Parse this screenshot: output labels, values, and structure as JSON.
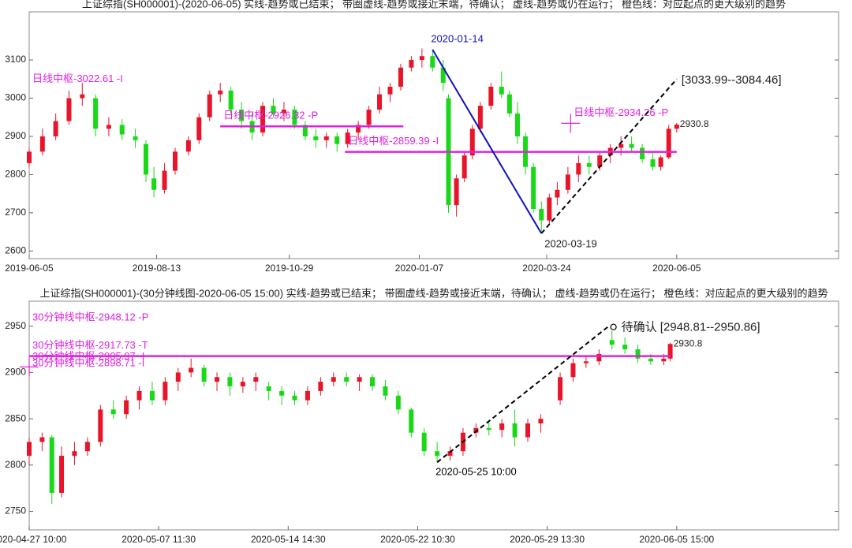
{
  "chart_data": [
    {
      "type": "candlestick",
      "title": "上证综指(SH000001)-(2020-06-05)  实线-趋势或已结束；  带圈虚线-趋势或接近末端，待确认；  虚线-趋势或仍在运行；  橙色线：对应起点的更大级别的趋势",
      "up_color": "#e8142a",
      "down_color": "#18d818",
      "xlim": [
        0,
        305
      ],
      "ylim": [
        2580,
        3226
      ],
      "xticks": [
        {
          "value": 0,
          "label": "2019-06-05"
        },
        {
          "value": 48,
          "label": "2019-08-13"
        },
        {
          "value": 98,
          "label": "2019-10-29"
        },
        {
          "value": 147,
          "label": "2020-01-07"
        },
        {
          "value": 195,
          "label": "2020-03-24"
        },
        {
          "value": 244,
          "label": "2020-06-05"
        }
      ],
      "yticks": [
        2600,
        2700,
        2800,
        2900,
        3000,
        3100
      ],
      "candles": {
        "x": [
          0,
          5,
          10,
          15,
          20,
          25,
          30,
          35,
          40,
          44,
          47,
          51,
          55,
          60,
          64,
          68,
          72,
          76,
          80,
          84,
          88,
          92,
          96,
          100,
          104,
          108,
          112,
          116,
          120,
          124,
          128,
          132,
          136,
          140,
          144,
          148,
          152,
          156,
          158,
          161,
          164,
          167,
          170,
          174,
          178,
          181,
          184,
          187,
          190,
          193,
          196,
          199,
          203,
          207,
          211,
          215,
          219,
          223,
          227,
          231,
          235,
          238,
          241,
          244
        ],
        "open": [
          2830,
          2860,
          2900,
          2940,
          3000,
          3000,
          2920,
          2930,
          2900,
          2880,
          2790,
          2760,
          2810,
          2860,
          2890,
          2950,
          3010,
          3020,
          2970,
          2940,
          2910,
          2980,
          2960,
          2970,
          2930,
          2900,
          2890,
          2900,
          2880,
          2910,
          2930,
          2970,
          3010,
          3030,
          3080,
          3100,
          3110,
          3080,
          3000,
          2720,
          2790,
          2850,
          2920,
          2980,
          3030,
          3010,
          2960,
          2900,
          2820,
          2710,
          2680,
          2740,
          2760,
          2800,
          2830,
          2820,
          2850,
          2870,
          2880,
          2870,
          2840,
          2820,
          2845,
          2920
        ],
        "high": [
          2870,
          2920,
          2960,
          3020,
          3040,
          3010,
          2950,
          2945,
          2920,
          2890,
          2820,
          2830,
          2870,
          2900,
          2960,
          3020,
          3040,
          3030,
          2990,
          2960,
          2990,
          3000,
          2990,
          2980,
          2940,
          2920,
          2910,
          2910,
          2920,
          2940,
          2980,
          3030,
          3040,
          3090,
          3110,
          3130,
          3127,
          3100,
          3010,
          2800,
          2860,
          2930,
          2990,
          3040,
          3070,
          3020,
          2990,
          2910,
          2830,
          2730,
          2750,
          2780,
          2820,
          2850,
          2850,
          2860,
          2880,
          2900,
          2900,
          2880,
          2860,
          2850,
          2930,
          2935
        ],
        "low": [
          2820,
          2850,
          2890,
          2930,
          2980,
          2900,
          2900,
          2890,
          2870,
          2780,
          2740,
          2750,
          2800,
          2850,
          2880,
          2940,
          2990,
          2960,
          2920,
          2890,
          2900,
          2950,
          2940,
          2920,
          2890,
          2870,
          2870,
          2860,
          2870,
          2890,
          2920,
          2960,
          2990,
          3020,
          3070,
          3080,
          3070,
          3020,
          2700,
          2690,
          2780,
          2840,
          2910,
          2970,
          3000,
          2950,
          2880,
          2800,
          2700,
          2646,
          2670,
          2720,
          2750,
          2780,
          2800,
          2810,
          2830,
          2850,
          2860,
          2830,
          2810,
          2810,
          2840,
          2910
        ],
        "close": [
          2860,
          2900,
          2940,
          3000,
          3010,
          2920,
          2930,
          2905,
          2890,
          2800,
          2760,
          2810,
          2860,
          2890,
          2950,
          3010,
          3020,
          2970,
          2940,
          2910,
          2980,
          2960,
          2970,
          2930,
          2900,
          2890,
          2900,
          2880,
          2910,
          2930,
          2970,
          3010,
          3030,
          3080,
          3100,
          3110,
          3080,
          3040,
          2720,
          2790,
          2850,
          2920,
          2980,
          3030,
          3010,
          2960,
          2900,
          2820,
          2710,
          2680,
          2740,
          2760,
          2800,
          2830,
          2820,
          2850,
          2870,
          2880,
          2870,
          2840,
          2820,
          2845,
          2920,
          2930.8
        ]
      },
      "trend_lines": [
        {
          "color": "#1010c0",
          "dashed": false,
          "x": [
            152,
            193
          ],
          "y": [
            3127,
            2646
          ],
          "start_label": "2020-01-14",
          "end_label": "2020-03-19"
        },
        {
          "color": "#000000",
          "dashed": true,
          "x": [
            193,
            244
          ],
          "y": [
            2646,
            3050
          ],
          "end_label": "[3033.99--3084.46]"
        }
      ],
      "pivot_color": "#e020e0",
      "pivots": [
        {
          "label": "日线中枢-3022.61 -I",
          "value": 3022.61
        },
        {
          "label": "日线中枢-2926.32 -P",
          "value": 2926.32,
          "x": [
            72,
            141
          ]
        },
        {
          "label": "日线中枢-2859.39 -I",
          "value": 2859.39,
          "x": [
            119,
            244
          ]
        },
        {
          "label": "日线中枢-2934.26 -P",
          "value": 2934.26,
          "x": [
            204
          ],
          "marker": "cross"
        }
      ],
      "last_price": 2930.8,
      "last_x": 244
    },
    {
      "type": "candlestick",
      "title": "上证综指(SH000001)-(30分钟线图-2020-06-05 15:00)  实线-趋势或已结束；  带圈虚线-趋势或接近末端，待确认；  虚线-趋势或仍在运行；  橙色线：对应起点的更大级别的趋势",
      "up_color": "#e8142a",
      "down_color": "#18d818",
      "xlim": [
        0,
        250
      ],
      "ylim": [
        2730,
        2977
      ],
      "xticks": [
        {
          "value": 0,
          "label": "2020-04-27 10:00"
        },
        {
          "value": 40,
          "label": "2020-05-07 11:30"
        },
        {
          "value": 80,
          "label": "2020-05-14 14:30"
        },
        {
          "value": 120,
          "label": "2020-05-22 10:30"
        },
        {
          "value": 160,
          "label": "2020-05-29 13:30"
        },
        {
          "value": 200,
          "label": "2020-06-05 15:00"
        }
      ],
      "yticks": [
        2750,
        2800,
        2850,
        2900,
        2950
      ],
      "candles": {
        "x": [
          0,
          4,
          7,
          10,
          14,
          18,
          22,
          26,
          30,
          34,
          38,
          42,
          46,
          50,
          54,
          58,
          62,
          66,
          70,
          74,
          78,
          82,
          86,
          90,
          94,
          98,
          102,
          106,
          110,
          114,
          118,
          122,
          126,
          130,
          134,
          138,
          142,
          146,
          150,
          154,
          158,
          164,
          168,
          172,
          176,
          180,
          184,
          188,
          192,
          196,
          198
        ],
        "open": [
          2810,
          2825,
          2830,
          2770,
          2810,
          2815,
          2825,
          2860,
          2855,
          2870,
          2880,
          2870,
          2890,
          2900,
          2905,
          2890,
          2895,
          2885,
          2890,
          2885,
          2880,
          2875,
          2870,
          2880,
          2890,
          2895,
          2890,
          2895,
          2885,
          2875,
          2860,
          2835,
          2815,
          2810,
          2815,
          2835,
          2840,
          2838,
          2845,
          2830,
          2845,
          2870,
          2895,
          2910,
          2912,
          2935,
          2930,
          2925,
          2915,
          2912,
          2915
        ],
        "high": [
          2830,
          2835,
          2832,
          2820,
          2825,
          2830,
          2865,
          2870,
          2875,
          2885,
          2890,
          2895,
          2905,
          2915,
          2908,
          2900,
          2900,
          2895,
          2900,
          2890,
          2885,
          2880,
          2885,
          2895,
          2900,
          2900,
          2898,
          2898,
          2892,
          2880,
          2862,
          2840,
          2825,
          2820,
          2840,
          2845,
          2848,
          2850,
          2860,
          2850,
          2855,
          2900,
          2915,
          2918,
          2925,
          2945,
          2938,
          2930,
          2920,
          2920,
          2932
        ],
        "low": [
          2800,
          2815,
          2758,
          2765,
          2800,
          2810,
          2820,
          2850,
          2850,
          2860,
          2865,
          2865,
          2880,
          2895,
          2885,
          2880,
          2875,
          2878,
          2880,
          2870,
          2865,
          2865,
          2865,
          2875,
          2885,
          2885,
          2880,
          2880,
          2870,
          2855,
          2830,
          2810,
          2803,
          2805,
          2810,
          2830,
          2832,
          2830,
          2820,
          2825,
          2835,
          2865,
          2890,
          2905,
          2908,
          2925,
          2920,
          2910,
          2908,
          2908,
          2912
        ],
        "close": [
          2825,
          2830,
          2770,
          2810,
          2815,
          2825,
          2860,
          2855,
          2870,
          2880,
          2870,
          2890,
          2900,
          2905,
          2890,
          2895,
          2885,
          2890,
          2895,
          2880,
          2875,
          2870,
          2880,
          2890,
          2895,
          2890,
          2895,
          2885,
          2875,
          2860,
          2835,
          2815,
          2810,
          2815,
          2835,
          2840,
          2838,
          2845,
          2830,
          2845,
          2850,
          2895,
          2910,
          2912,
          2920,
          2930,
          2925,
          2915,
          2912,
          2915,
          2930.8
        ]
      },
      "trend_lines": [
        {
          "color": "#000000",
          "dashed": true,
          "circled": true,
          "x": [
            126,
            179
          ],
          "y": [
            2803,
            2950
          ],
          "start_label": "2020-05-25 10:00",
          "end_label": "待确认 [2948.81--2950.86]"
        }
      ],
      "pivot_color": "#e020e0",
      "pivots": [
        {
          "label": "30分钟线中枢-2948.12 -P",
          "value": 2948.12
        },
        {
          "label": "30分钟线中枢-2917.73 -T",
          "value": 2917.73,
          "x": [
            0,
            198
          ]
        },
        {
          "label": "30分钟线中枢-2905.97 -I",
          "value": 2905.97,
          "x": [
            0
          ],
          "marker": "cross"
        },
        {
          "label": "30分钟线中枢-2898.71 -I",
          "value": 2898.71
        }
      ],
      "last_price": 2930.8,
      "last_x": 198
    }
  ]
}
